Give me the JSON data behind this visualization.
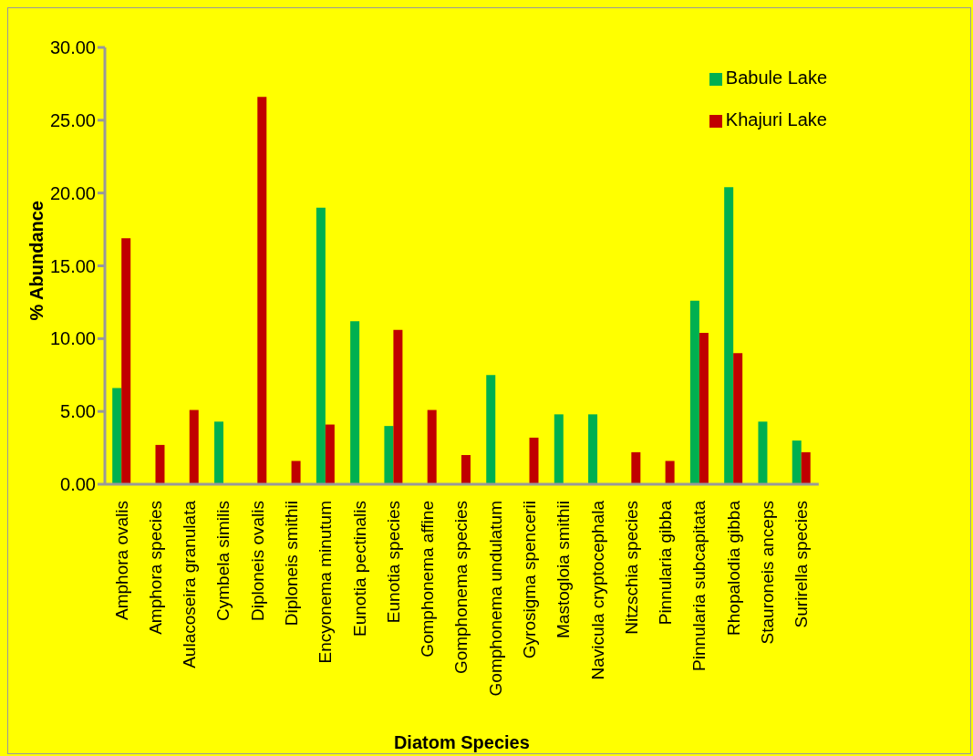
{
  "chart_data": {
    "type": "bar",
    "xlabel": "Diatom Species",
    "ylabel": "% Abundance",
    "categories": [
      "Amphora ovalis",
      "Amphora species",
      "Aulacoseira granulata",
      "Cymbela similis",
      "Diploneis ovalis",
      "Diploneis smithii",
      "Encyonema  minutum",
      "Eunotia pectinalis",
      "Eunotia species",
      "Gomphonema affine",
      "Gomphonema species",
      "Gomphonema undulatum",
      "Gyrosigma spencerii",
      "Mastogloia smithii",
      "Navicula cryptocephala",
      "Nitzschia species",
      "Pinnularia gibba",
      "Pinnularia subcapitata",
      "Rhopalodia gibba",
      "Stauroneis anceps",
      "Surirella species"
    ],
    "series": [
      {
        "name": "Babule Lake",
        "color": "#00b050",
        "values": [
          6.6,
          0,
          0,
          4.3,
          0,
          0,
          19.0,
          11.2,
          4.0,
          0,
          0,
          7.5,
          0,
          4.8,
          4.8,
          0,
          0,
          12.6,
          20.4,
          4.3,
          3.0
        ]
      },
      {
        "name": "Khajuri Lake",
        "color": "#c00000",
        "values": [
          16.9,
          2.7,
          5.1,
          0,
          26.6,
          1.6,
          4.1,
          0,
          10.6,
          5.1,
          2.0,
          0,
          3.2,
          0,
          0,
          2.2,
          1.6,
          10.4,
          9.0,
          0,
          2.2
        ]
      }
    ],
    "ylim": [
      0,
      30
    ],
    "yticks": [
      {
        "value": 0,
        "label": "0.00"
      },
      {
        "value": 5,
        "label": "5.00"
      },
      {
        "value": 10,
        "label": "10.00"
      },
      {
        "value": 15,
        "label": "15.00"
      },
      {
        "value": 20,
        "label": "20.00"
      },
      {
        "value": 25,
        "label": "25.00"
      },
      {
        "value": 30,
        "label": "30.00"
      }
    ],
    "grid": false,
    "legend": "top right"
  }
}
